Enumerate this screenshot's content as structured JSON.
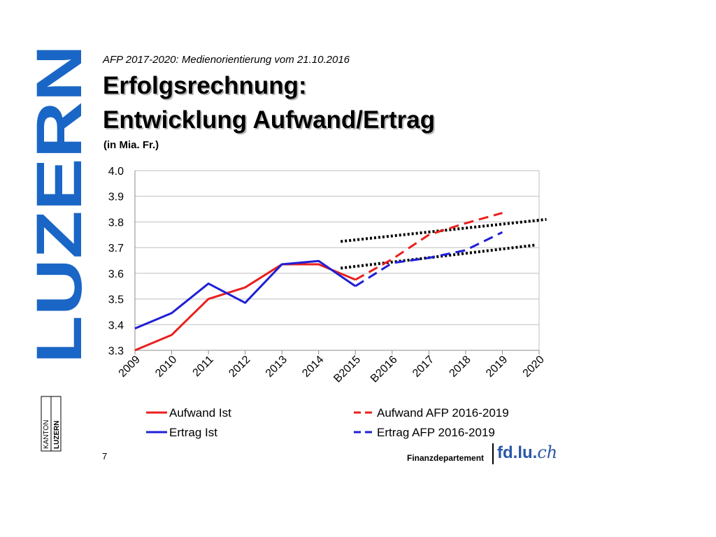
{
  "slide": {
    "subtitle": "AFP 2017-2020: Medienorientierung vom 21.10.2016",
    "title_line1": "Erfolgsrechnung:",
    "title_line2": "Entwicklung Aufwand/Ertrag",
    "unit": "(in Mia. Fr.)",
    "page_number": "7"
  },
  "brand": {
    "logo_text": "LUZERN",
    "badge_top": "KANTON",
    "badge_bottom": "LUZERN",
    "color": "#1a66c6"
  },
  "footer": {
    "department": "Finanzdepartement",
    "url_prefix": "fd.lu.",
    "url_suffix": "ch"
  },
  "chart_data": {
    "type": "line",
    "categories": [
      "2009",
      "2010",
      "2011",
      "2012",
      "2013",
      "2014",
      "B2015",
      "B2016",
      "2017",
      "2018",
      "2019",
      "2020"
    ],
    "ylim": [
      3.3,
      4.0
    ],
    "yticks": [
      "3.3",
      "3.4",
      "3.5",
      "3.6",
      "3.7",
      "3.8",
      "3.9",
      "4.0"
    ],
    "grid": true,
    "legend_position": "bottom",
    "series": [
      {
        "name": "Aufwand Ist",
        "color": "#e8201e",
        "style": "solid",
        "x": [
          "2009",
          "2010",
          "2011",
          "2012",
          "2013",
          "2014",
          "B2015"
        ],
        "values": [
          3.3,
          3.36,
          3.5,
          3.545,
          3.635,
          3.635,
          3.575
        ]
      },
      {
        "name": "Ertrag Ist",
        "color": "#1f1fd6",
        "style": "solid",
        "x": [
          "2009",
          "2010",
          "2011",
          "2012",
          "2013",
          "2014",
          "B2015"
        ],
        "values": [
          3.385,
          3.445,
          3.56,
          3.485,
          3.635,
          3.648,
          3.55
        ]
      },
      {
        "name": "Aufwand AFP 2016-2019",
        "color": "#e8201e",
        "style": "dashed",
        "x": [
          "B2015",
          "B2016",
          "2017",
          "2018",
          "2019"
        ],
        "values": [
          3.575,
          3.655,
          3.75,
          3.795,
          3.835
        ]
      },
      {
        "name": "Ertrag AFP 2016-2019",
        "color": "#1f1fd6",
        "style": "dashed",
        "x": [
          "B2015",
          "B2016",
          "2017",
          "2018",
          "2019"
        ],
        "values": [
          3.55,
          3.64,
          3.66,
          3.69,
          3.76
        ]
      }
    ],
    "trendlines": [
      {
        "color": "#000000",
        "style": "dotted",
        "x": [
          5.6,
          11.2
        ],
        "values": [
          3.724,
          3.81
        ]
      },
      {
        "color": "#000000",
        "style": "dotted",
        "x": [
          5.6,
          10.9
        ],
        "values": [
          3.62,
          3.71
        ]
      }
    ]
  }
}
